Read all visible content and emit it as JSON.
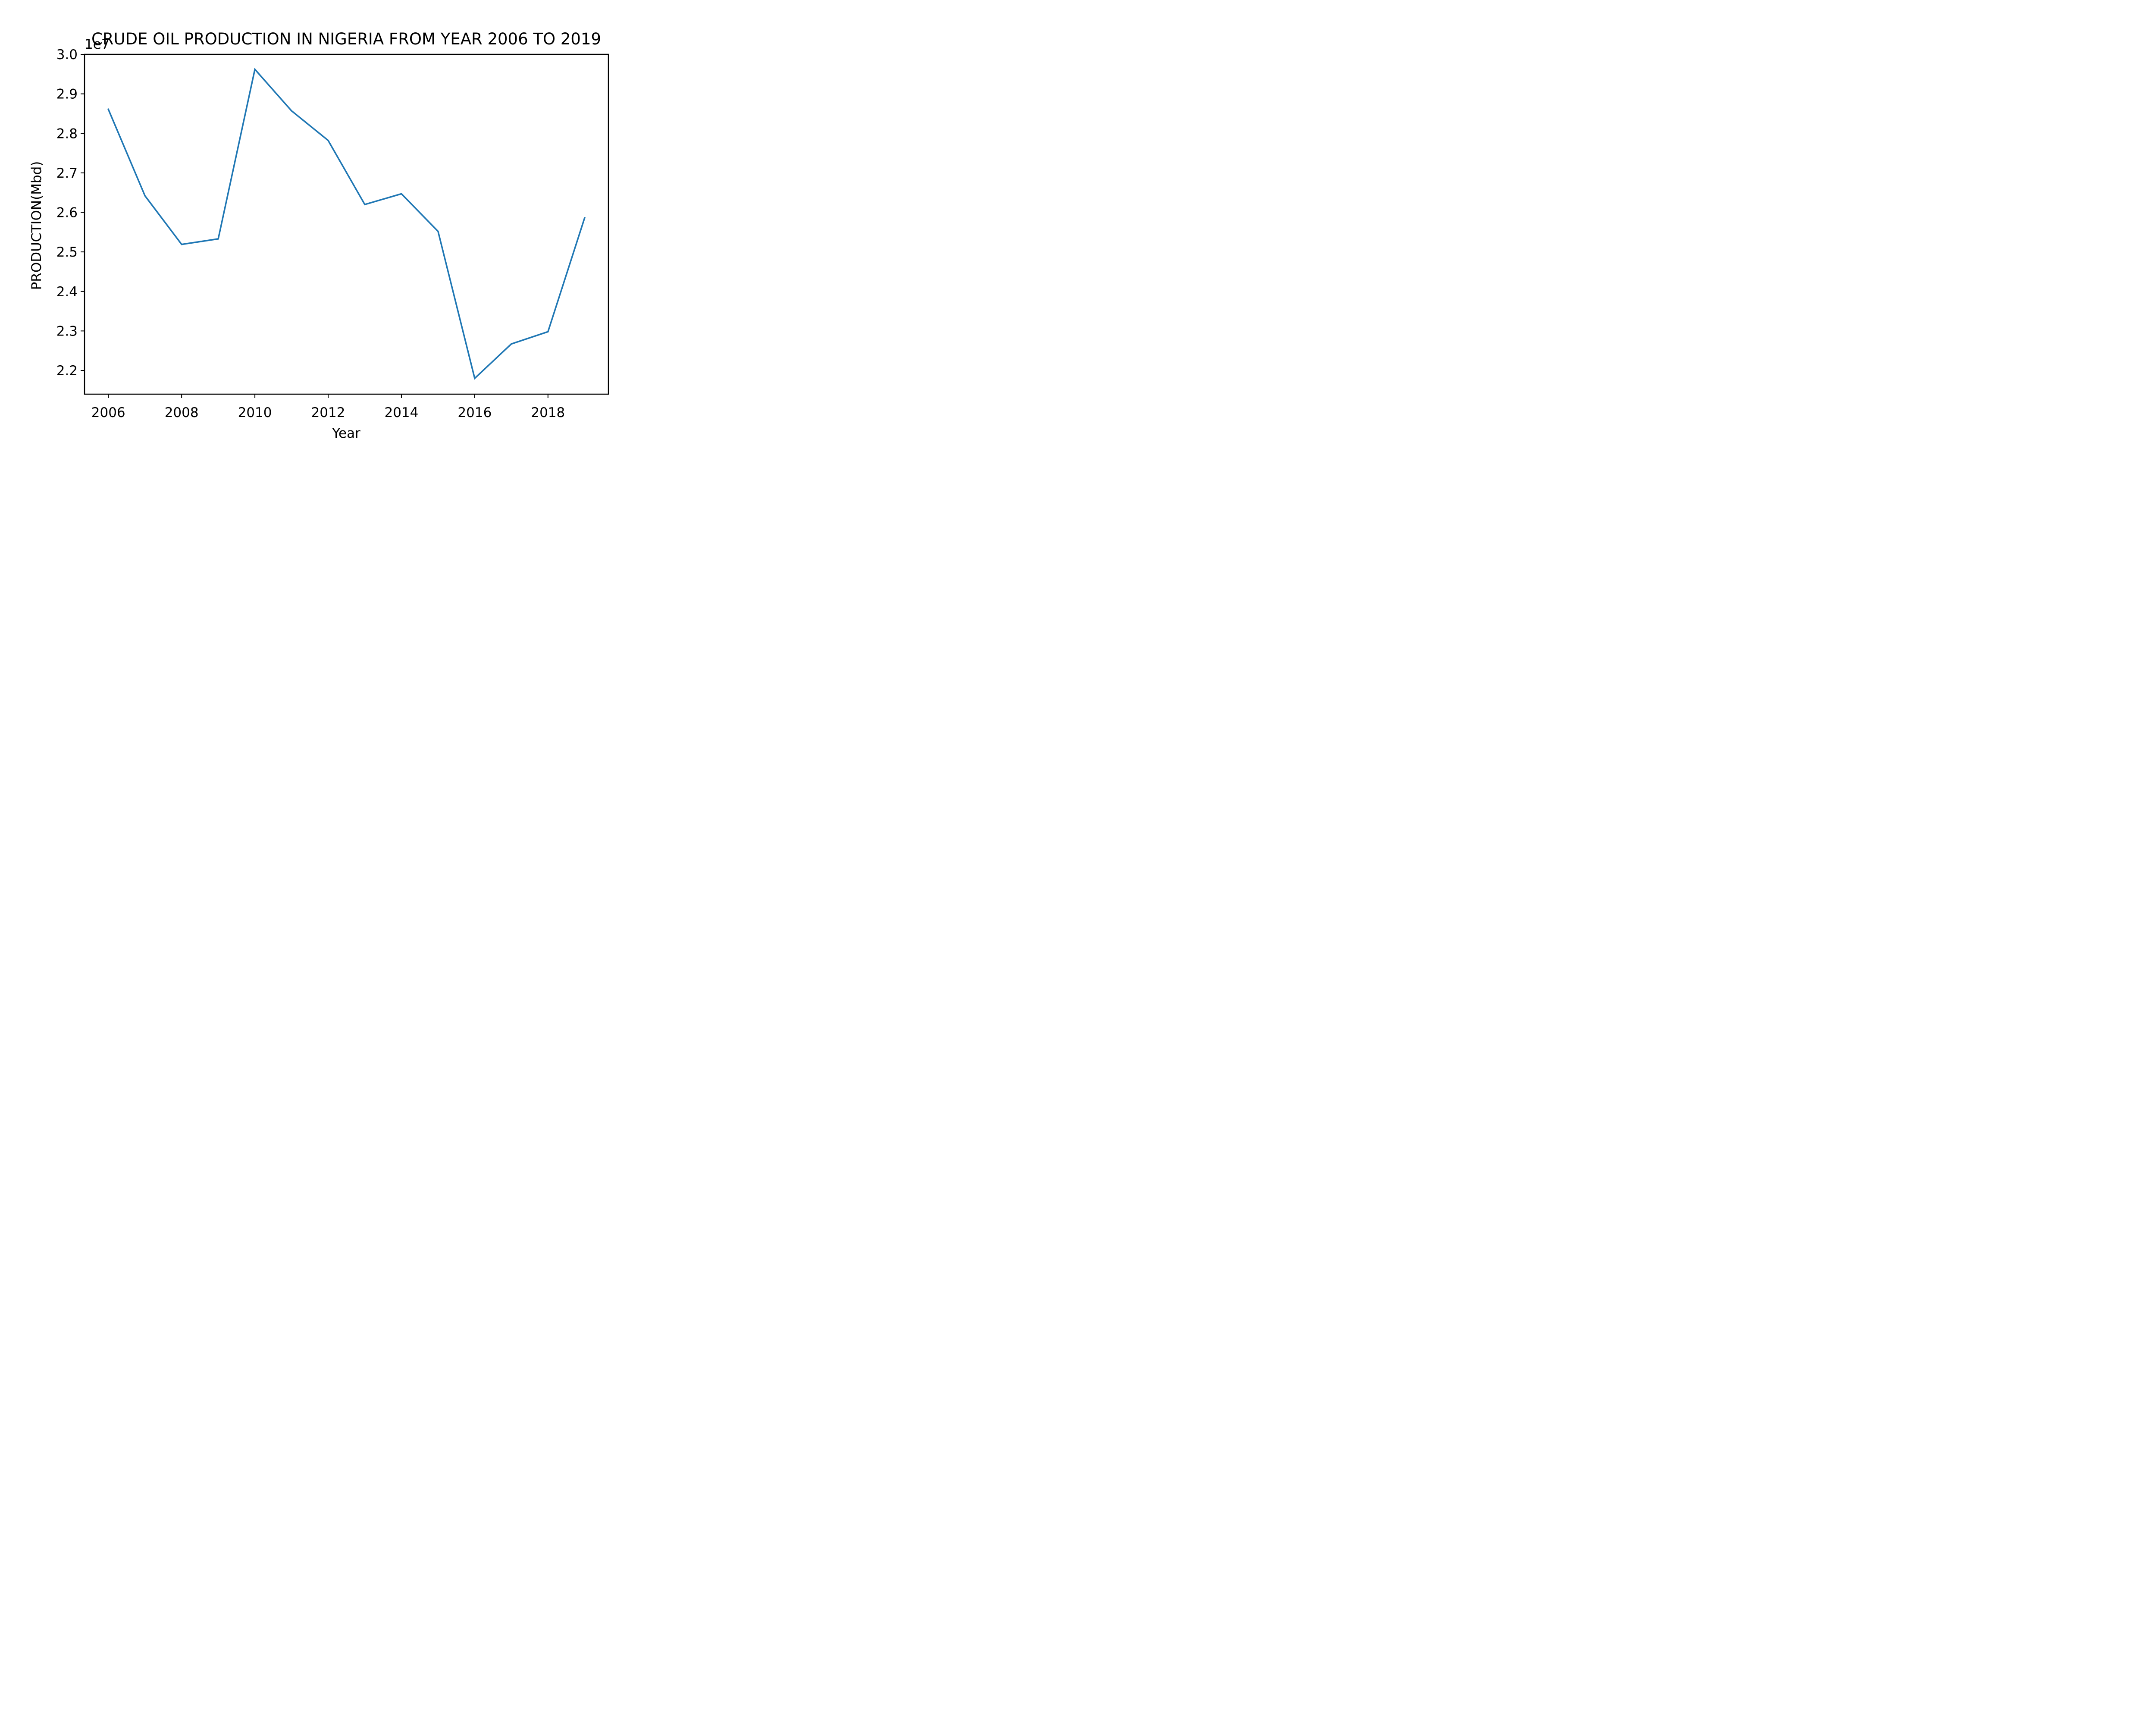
{
  "chart_data": {
    "type": "line",
    "title": "CRUDE OIL PRODUCTION IN NIGERIA FROM YEAR 2006 TO 2019",
    "xlabel": "Year",
    "ylabel": "PRODUCTION(Mbd)",
    "y_offset_label": "1e7",
    "xlim": [
      2005.35,
      2019.65
    ],
    "ylim": [
      2.14,
      3.0
    ],
    "x_ticks": [
      2006,
      2008,
      2010,
      2012,
      2014,
      2016,
      2018
    ],
    "y_ticks": [
      2.2,
      2.3,
      2.4,
      2.5,
      2.6,
      2.7,
      2.8,
      2.9,
      3.0
    ],
    "grid": false,
    "series": [
      {
        "color": "#1f77b4",
        "x": [
          2006,
          2007,
          2008,
          2009,
          2010,
          2011,
          2012,
          2013,
          2014,
          2015,
          2016,
          2017,
          2018,
          2019
        ],
        "values": [
          2.861,
          2.642,
          2.519,
          2.533,
          2.962,
          2.857,
          2.782,
          2.62,
          2.647,
          2.552,
          2.18,
          2.267,
          2.298,
          2.586
        ]
      }
    ]
  }
}
